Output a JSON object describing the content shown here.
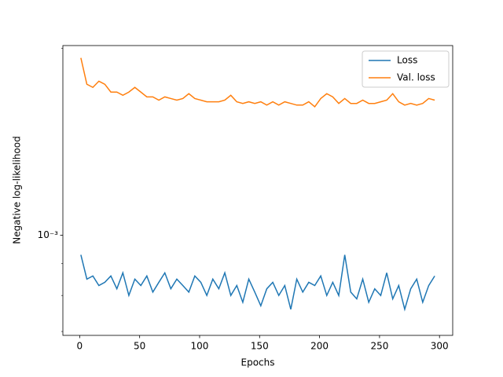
{
  "chart_data": {
    "type": "line",
    "x_label": "Epochs",
    "y_label": "Negative log-likelihood",
    "x": [
      1,
      6,
      11,
      16,
      21,
      26,
      31,
      36,
      41,
      46,
      51,
      56,
      61,
      66,
      71,
      76,
      81,
      86,
      91,
      96,
      101,
      106,
      111,
      116,
      121,
      126,
      131,
      136,
      141,
      146,
      151,
      156,
      161,
      166,
      171,
      176,
      181,
      186,
      191,
      196,
      201,
      206,
      211,
      216,
      221,
      226,
      231,
      236,
      241,
      246,
      251,
      256,
      261,
      266,
      271,
      276,
      281,
      286,
      291,
      296
    ],
    "series": [
      {
        "name": "Loss",
        "color": "#1f77b4",
        "values": [
          0.00093,
          0.00085,
          0.00086,
          0.00083,
          0.00084,
          0.00086,
          0.00082,
          0.00087,
          0.0008,
          0.00085,
          0.00083,
          0.00086,
          0.00081,
          0.00084,
          0.00087,
          0.00082,
          0.00085,
          0.00083,
          0.00081,
          0.00086,
          0.00084,
          0.0008,
          0.00085,
          0.00082,
          0.00087,
          0.0008,
          0.00083,
          0.00078,
          0.00085,
          0.00081,
          0.00077,
          0.00082,
          0.00084,
          0.0008,
          0.00083,
          0.00076,
          0.00085,
          0.00081,
          0.00084,
          0.00083,
          0.00086,
          0.0008,
          0.00084,
          0.0008,
          0.00093,
          0.00081,
          0.00079,
          0.00085,
          0.00078,
          0.00082,
          0.0008,
          0.00087,
          0.00079,
          0.00083,
          0.00076,
          0.00082,
          0.00085,
          0.00078,
          0.00083,
          0.00086
        ]
      },
      {
        "name": "Val. loss",
        "color": "#ff7f0e",
        "values": [
          0.00193,
          0.00175,
          0.00173,
          0.00177,
          0.00175,
          0.0017,
          0.0017,
          0.00168,
          0.0017,
          0.00173,
          0.0017,
          0.00167,
          0.00167,
          0.00165,
          0.00167,
          0.00166,
          0.00165,
          0.00166,
          0.00169,
          0.00166,
          0.00165,
          0.00164,
          0.00164,
          0.00164,
          0.00165,
          0.00168,
          0.00164,
          0.00163,
          0.00164,
          0.00163,
          0.00164,
          0.00162,
          0.00164,
          0.00162,
          0.00164,
          0.00163,
          0.00162,
          0.00162,
          0.00164,
          0.00161,
          0.00166,
          0.00169,
          0.00167,
          0.00163,
          0.00166,
          0.00163,
          0.00163,
          0.00165,
          0.00163,
          0.00163,
          0.00164,
          0.00165,
          0.00169,
          0.00164,
          0.00162,
          0.00163,
          0.00162,
          0.00163,
          0.00166,
          0.00165
        ]
      }
    ],
    "xlim": [
      -14,
      311
    ],
    "xticks": [
      0,
      50,
      100,
      150,
      200,
      250,
      300
    ],
    "ylim": [
      0.00069,
      0.00202
    ],
    "ylog": true,
    "yticks": [
      {
        "value": 0.001,
        "label": "10⁻³"
      }
    ],
    "yminorticks": [
      0.0007,
      0.0008,
      0.0009,
      0.002
    ],
    "legend": "upper right"
  }
}
